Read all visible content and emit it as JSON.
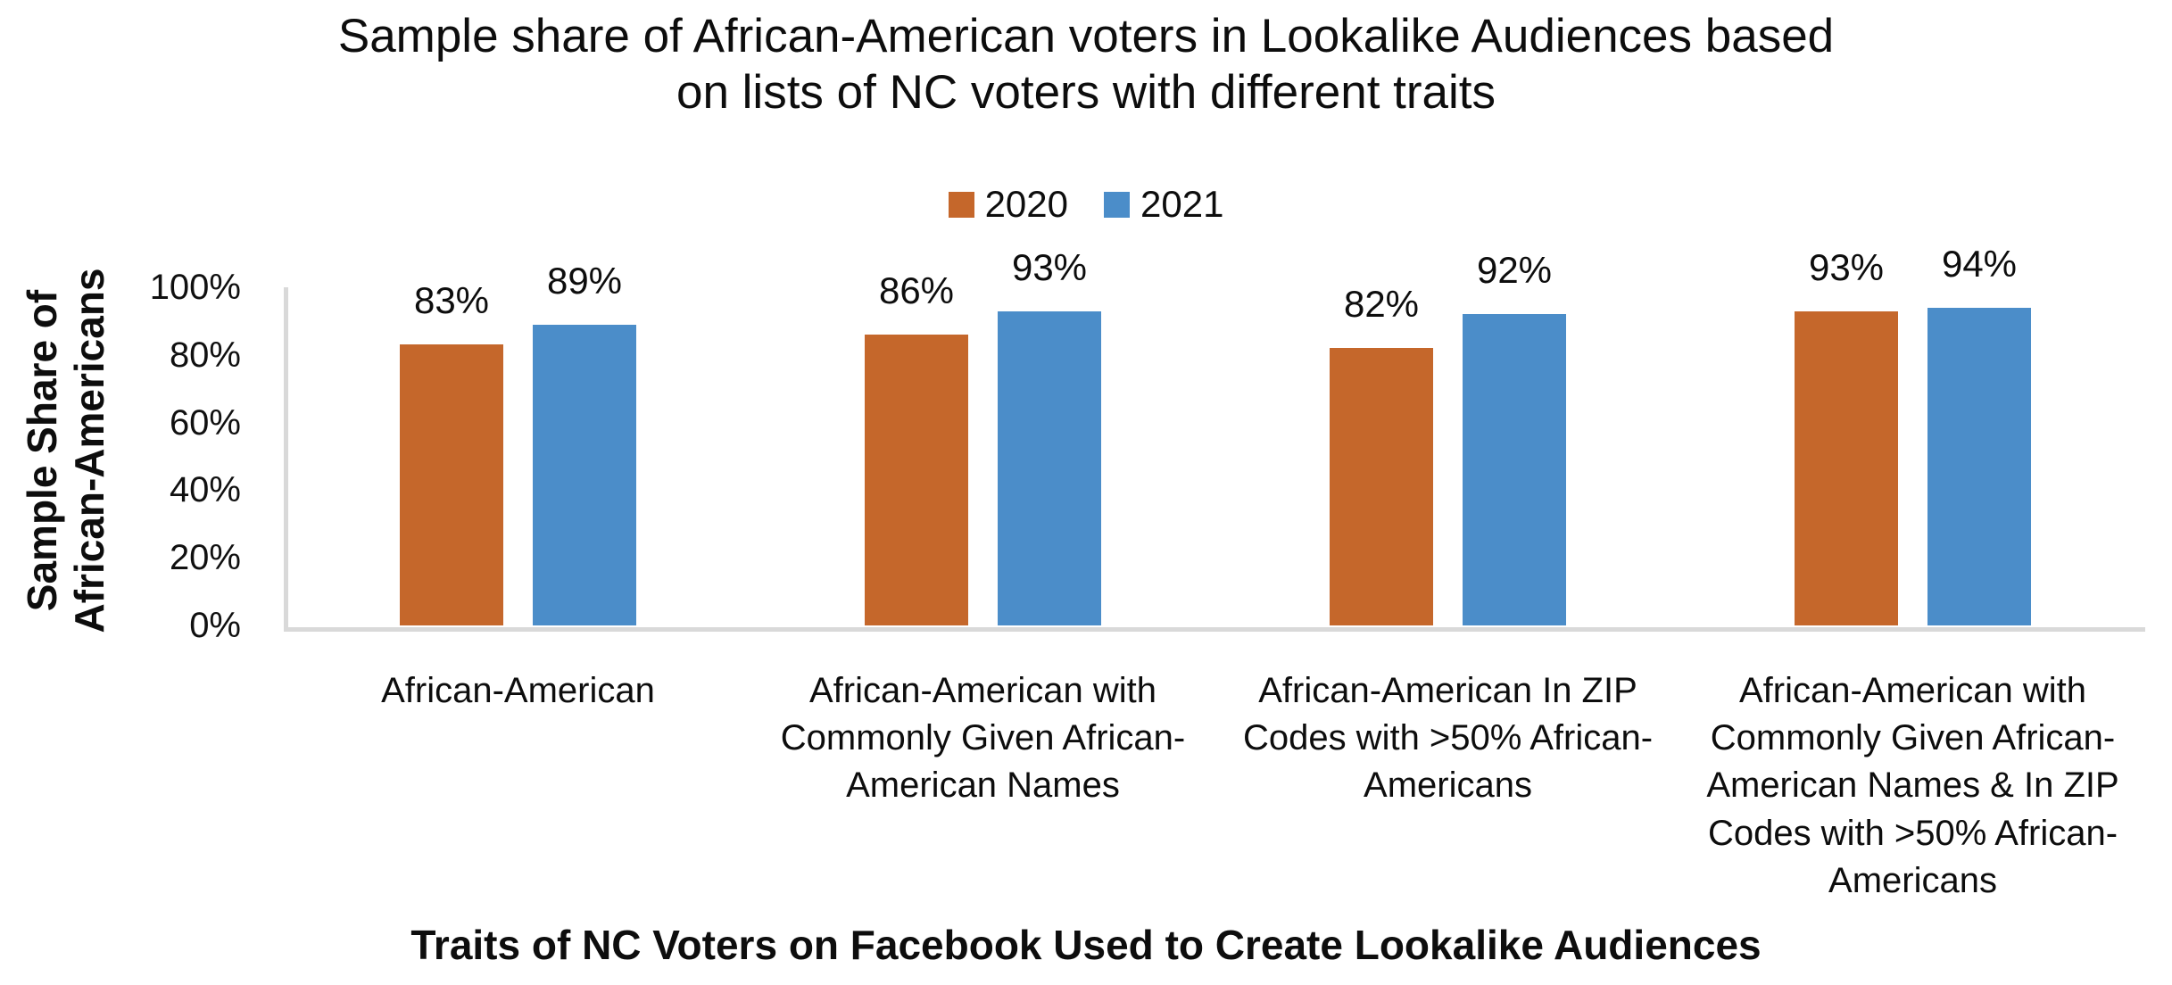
{
  "title": "Sample share of African-American voters in Lookalike Audiences based\non lists of NC voters with different traits",
  "y_axis": {
    "title": "Sample Share of\nAfrican-Americans"
  },
  "x_axis": {
    "title": "Traits of NC Voters on Facebook Used to Create Lookalike Audiences"
  },
  "colors": {
    "series_2020": "#C5672B",
    "series_2021": "#4B8DC9",
    "axis_line": "#D9D9D9"
  },
  "chart_data": {
    "type": "bar",
    "title": "Sample share of African-American voters in Lookalike Audiences based on lists of NC voters with different traits",
    "categories": [
      [
        "African-American"
      ],
      [
        "African-American with",
        "Commonly Given African-",
        "American Names"
      ],
      [
        "African-American In ZIP",
        "Codes with >50% African-",
        "Americans"
      ],
      [
        "African-American with",
        "Commonly Given African-",
        "American Names & In ZIP",
        "Codes with >50% African-",
        "Americans"
      ]
    ],
    "series": [
      {
        "name": "2020",
        "color": "#C5672B",
        "values": [
          83,
          86,
          82,
          93
        ]
      },
      {
        "name": "2021",
        "color": "#4B8DC9",
        "values": [
          89,
          93,
          92,
          94
        ]
      }
    ],
    "value_labels": [
      [
        "83%",
        "86%",
        "82%",
        "93%"
      ],
      [
        "89%",
        "93%",
        "92%",
        "94%"
      ]
    ],
    "ylabel": "Sample Share of African-Americans",
    "xlabel": "Traits of NC Voters on Facebook Used to Create Lookalike Audiences",
    "ylim": [
      0,
      100
    ],
    "yticks": [
      100,
      80,
      60,
      40,
      20,
      0
    ],
    "ytick_labels": [
      "100%",
      "80%",
      "60%",
      "40%",
      "20%",
      "0%"
    ],
    "grid": false,
    "legend_position": "top-center",
    "bar_value_label_format": "percent"
  }
}
